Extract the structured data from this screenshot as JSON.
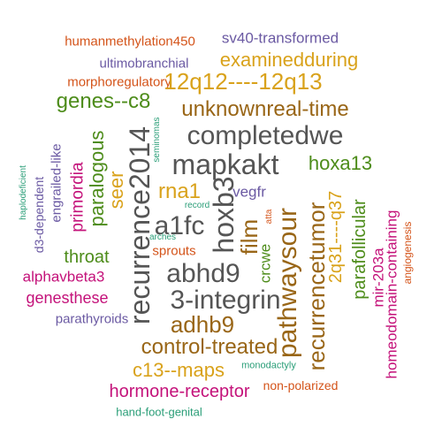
{
  "palette": {
    "gray": "#555555",
    "brown": "#996617",
    "olive": "#4d8c1a",
    "gold": "#d9a21b",
    "magenta": "#c4127a",
    "purple": "#6b5aa3",
    "orange": "#d4541a",
    "teal": "#2b9e78"
  },
  "words": [
    {
      "text": "humanmethylation450",
      "color": "#d4541a"
    },
    {
      "text": "sv40-transformed",
      "color": "#6b5aa3"
    },
    {
      "text": "examinedduring",
      "color": "#d9a21b"
    },
    {
      "text": "ultimobranchial",
      "color": "#6b5aa3"
    },
    {
      "text": "morphoregulatory",
      "color": "#d4541a"
    },
    {
      "text": "12q12----12q13",
      "color": "#d9a21b"
    },
    {
      "text": "genes--c8",
      "color": "#4d8c1a"
    },
    {
      "text": "unknownreal-time",
      "color": "#996617"
    },
    {
      "text": "completedwe",
      "color": "#555555"
    },
    {
      "text": "mapkakt",
      "color": "#555555"
    },
    {
      "text": "hoxa13",
      "color": "#4d8c1a"
    },
    {
      "text": "rna1",
      "color": "#d9a21b"
    },
    {
      "text": "vegfr",
      "color": "#6b5aa3"
    },
    {
      "text": "a1fc",
      "color": "#555555"
    },
    {
      "text": "abhd9",
      "color": "#555555"
    },
    {
      "text": "3-integrin",
      "color": "#555555"
    },
    {
      "text": "adhb9",
      "color": "#996617"
    },
    {
      "text": "control-treated",
      "color": "#996617"
    },
    {
      "text": "c13--maps",
      "color": "#d9a21b"
    },
    {
      "text": "hormone-receptor",
      "color": "#c4127a"
    },
    {
      "text": "non-polarized",
      "color": "#d4541a"
    },
    {
      "text": "monodactyly",
      "color": "#2b9e78"
    },
    {
      "text": "hand-foot-genital",
      "color": "#2b9e78"
    },
    {
      "text": "throat",
      "color": "#4d8c1a"
    },
    {
      "text": "alphavbeta3",
      "color": "#c4127a"
    },
    {
      "text": "genesthese",
      "color": "#c4127a"
    },
    {
      "text": "parathyroids",
      "color": "#6b5aa3"
    },
    {
      "text": "sprouts",
      "color": "#d4541a"
    },
    {
      "text": "arches",
      "color": "#2b9e78"
    },
    {
      "text": "record",
      "color": "#2b9e78"
    },
    {
      "text": "recurrence2014",
      "color": "#555555"
    },
    {
      "text": "hoxb3",
      "color": "#555555"
    },
    {
      "text": "pathwaysour",
      "color": "#996617"
    },
    {
      "text": "recurrencetumor",
      "color": "#996617"
    },
    {
      "text": "film",
      "color": "#996617"
    },
    {
      "text": "seer",
      "color": "#d9a21b"
    },
    {
      "text": "paralogous",
      "color": "#4d8c1a"
    },
    {
      "text": "primordia",
      "color": "#c4127a"
    },
    {
      "text": "engrailed-like",
      "color": "#6b5aa3"
    },
    {
      "text": "d3-dependent",
      "color": "#6b5aa3"
    },
    {
      "text": "haplodeficient",
      "color": "#2b9e78"
    },
    {
      "text": "seminomas",
      "color": "#2b9e78"
    },
    {
      "text": "crcwe",
      "color": "#4d8c1a"
    },
    {
      "text": "atta",
      "color": "#d4541a"
    },
    {
      "text": "2q31----q37",
      "color": "#d9a21b"
    },
    {
      "text": "parafollicular",
      "color": "#4d8c1a"
    },
    {
      "text": "mir-203a",
      "color": "#c4127a"
    },
    {
      "text": "homeodomain-containing",
      "color": "#c4127a"
    },
    {
      "text": "angiogenesis",
      "color": "#d4541a"
    }
  ]
}
